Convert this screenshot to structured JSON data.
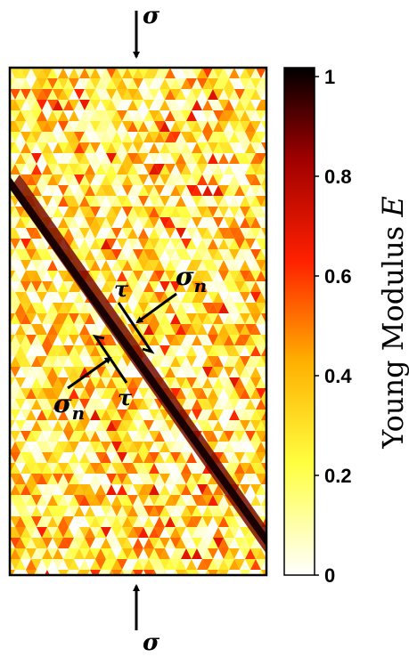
{
  "labels": {
    "sigma_top": "σ",
    "sigma_bottom": "σ",
    "sigma_n_right": "σ",
    "sigma_n_right_sub": "n",
    "tau_upper": "τ",
    "sigma_n_left": "σ",
    "sigma_n_left_sub": "n",
    "tau_lower": "τ"
  },
  "colorbar": {
    "title_prefix": "Young Modulus ",
    "title_var": "E",
    "ticks": [
      "1",
      "0.8",
      "0.6",
      "0.4",
      "0.2",
      "0"
    ],
    "colormap": "hot (inverted): white at 0, yellow, orange, red, black at 1"
  },
  "colors": {
    "arrow": "#000000",
    "frame": "#000000",
    "band": "#1a0000"
  }
}
